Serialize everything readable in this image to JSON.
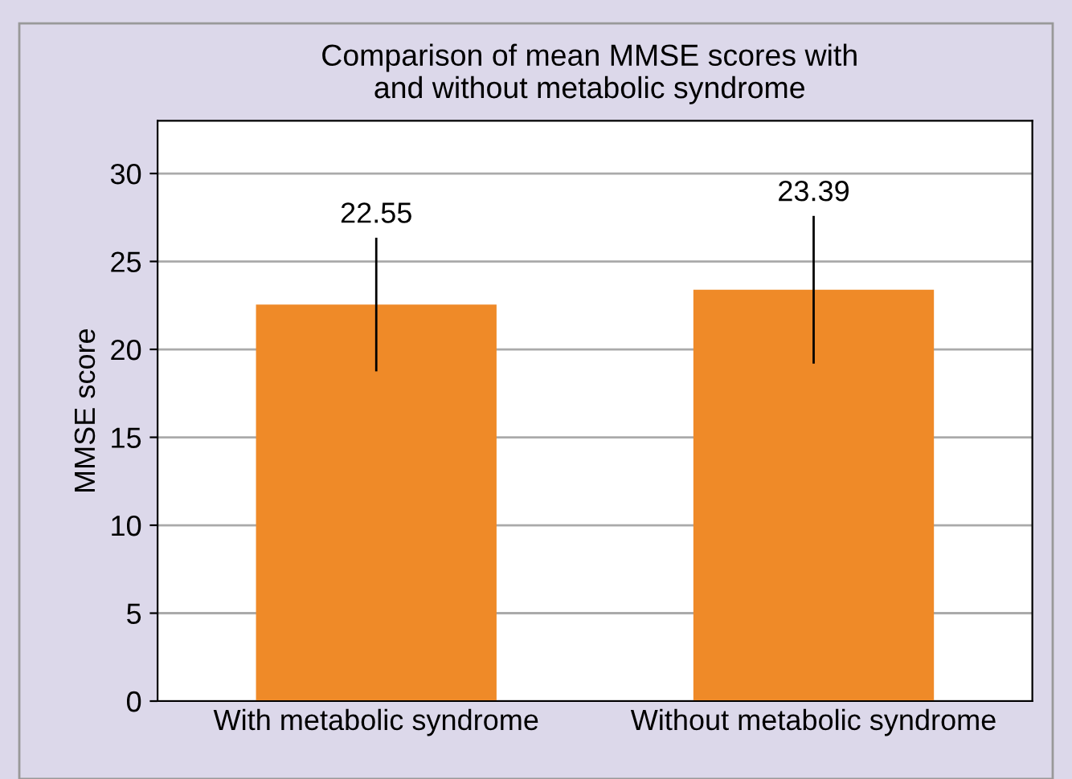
{
  "chart_data": {
    "type": "bar",
    "title": "Comparison of mean MMSE scores with\nand without metabolic syndrome",
    "ylabel": "MMSE score",
    "categories": [
      "With metabolic syndrome",
      "Without metabolic syndrome"
    ],
    "values": [
      22.55,
      23.39
    ],
    "errors": [
      3.8,
      4.2
    ],
    "color": "#ef8a28",
    "data_labels": true,
    "ylim": [
      0,
      33
    ],
    "yticks": [
      0,
      5,
      10,
      15,
      20,
      25,
      30
    ],
    "grid": "y",
    "legend": false
  }
}
